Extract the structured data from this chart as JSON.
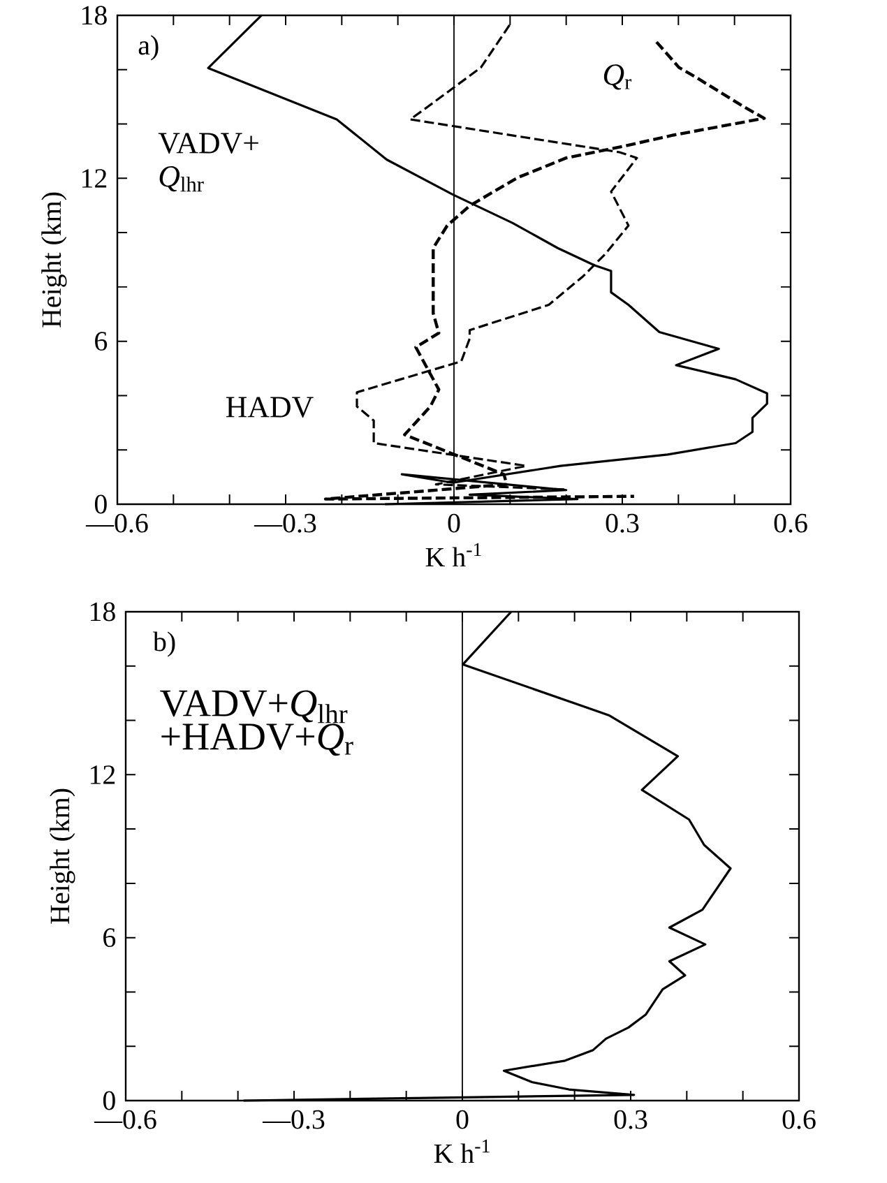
{
  "chart_data": [
    {
      "type": "line",
      "annotations": [
        "a)"
      ],
      "xlabel": "K h$^{-1}$",
      "ylabel": "Height (km)",
      "xlim": [
        -0.6,
        0.6
      ],
      "ylim": [
        0,
        18
      ],
      "xticks": [
        {
          "value": -0.6,
          "label": "—0.6"
        },
        {
          "value": -0.5,
          "label": null
        },
        {
          "value": -0.4,
          "label": null
        },
        {
          "value": -0.3,
          "label": "—0.3"
        },
        {
          "value": -0.2,
          "label": null
        },
        {
          "value": -0.1,
          "label": null
        },
        0,
        {
          "value": 0.1,
          "label": null
        },
        {
          "value": 0.2,
          "label": null
        },
        0.3,
        {
          "value": 0.4,
          "label": null
        },
        {
          "value": 0.5,
          "label": null
        },
        0.6
      ],
      "yticks": [
        0,
        {
          "value": 2,
          "label": null
        },
        {
          "value": 4,
          "label": null
        },
        6,
        {
          "value": 8,
          "label": null
        },
        {
          "value": 10,
          "label": null
        },
        12,
        {
          "value": 14,
          "label": null
        },
        {
          "value": 16,
          "label": null
        },
        18
      ],
      "ref_lines": [
        {
          "axis": "x",
          "value": 0,
          "color": "#000000"
        }
      ],
      "series": [
        {
          "name": "VADV+ *Q*$_{lhr}$",
          "color": "#000000",
          "line_style": "solid",
          "x": [
            -0.343,
            -0.438,
            -0.209,
            -0.12,
            -0.002,
            0.104,
            0.185,
            0.25,
            0.28,
            0.28,
            0.311,
            0.366,
            0.472,
            0.396,
            0.502,
            0.558,
            0.558,
            0.532,
            0.532,
            0.502,
            0.381,
            0.19,
            -0.002,
            -0.093,
            0.2,
            0.028,
            0.22,
            -0.123
          ],
          "values": [
            18,
            16.06,
            14.17,
            12.69,
            11.4,
            10.36,
            9.43,
            8.8,
            8.59,
            7.8,
            7.34,
            6.34,
            5.72,
            5.12,
            4.6,
            4.08,
            3.7,
            3.18,
            2.66,
            2.25,
            1.83,
            1.41,
            0.79,
            1.1,
            0.52,
            0.35,
            0.19,
            0
          ]
        },
        {
          "name": "HADV",
          "color": "#000000",
          "line_style": "dashed",
          "x": [
            0.099,
            0.048,
            -0.047,
            -0.078,
            0.295,
            0.326,
            0.28,
            0.311,
            0.27,
            0.23,
            0.169,
            0.028,
            0.028,
            0.013,
            -0.173,
            -0.173,
            -0.143,
            -0.143,
            0.129,
            -0.032,
            0.2
          ],
          "values": [
            17.64,
            16.08,
            14.63,
            14.17,
            12.96,
            12.75,
            11.51,
            10.26,
            9.22,
            8.39,
            7.34,
            6.41,
            6.1,
            5.26,
            4.12,
            3.6,
            3.08,
            2.25,
            1.41,
            0.73,
            0.54
          ]
        },
        {
          "name": "*Q*$_{r}$",
          "color": "#000000",
          "line_style": "dashed",
          "x": [
            0.361,
            0.401,
            0.432,
            0.517,
            0.553,
            0.391,
            0.3,
            0.2,
            0.114,
            0.028,
            -0.012,
            -0.037,
            -0.037,
            -0.027,
            -0.068,
            -0.027,
            -0.042,
            -0.088,
            0.089,
            0.094,
            -0.229,
            0.321
          ],
          "values": [
            17.02,
            16.08,
            15.71,
            14.63,
            14.21,
            13.59,
            13.17,
            12.75,
            12.03,
            10.99,
            10.26,
            9.43,
            7.03,
            6.3,
            5.78,
            4.22,
            3.6,
            2.56,
            1.1,
            0.73,
            0.19,
            0.29
          ]
        }
      ]
    },
    {
      "type": "line",
      "annotations": [
        "b)"
      ],
      "xlabel": "K h$^{-1}$",
      "ylabel": "Height (km)",
      "xlim": [
        -0.6,
        0.6
      ],
      "ylim": [
        0,
        18
      ],
      "xticks": [
        {
          "value": -0.6,
          "label": "—0.6"
        },
        {
          "value": -0.5,
          "label": null
        },
        {
          "value": -0.4,
          "label": null
        },
        {
          "value": -0.3,
          "label": "—0.3"
        },
        {
          "value": -0.2,
          "label": null
        },
        {
          "value": -0.1,
          "label": null
        },
        0,
        {
          "value": 0.1,
          "label": null
        },
        {
          "value": 0.2,
          "label": null
        },
        0.3,
        {
          "value": 0.4,
          "label": null
        },
        {
          "value": 0.5,
          "label": null
        },
        0.6
      ],
      "yticks": [
        0,
        {
          "value": 2,
          "label": null
        },
        {
          "value": 4,
          "label": null
        },
        6,
        {
          "value": 8,
          "label": null
        },
        {
          "value": 10,
          "label": null
        },
        12,
        {
          "value": 14,
          "label": null
        },
        {
          "value": 16,
          "label": null
        },
        18
      ],
      "ref_lines": [
        {
          "axis": "x",
          "value": 0,
          "color": "#000000"
        }
      ],
      "series": [
        {
          "name": "VADV+*Q*$_{lhr}$ +HADV+*Q*$_{r}$",
          "color": "#000000",
          "line_style": "solid",
          "x": [
            0.087,
            0.001,
            0.261,
            0.384,
            0.32,
            0.404,
            0.431,
            0.478,
            0.428,
            0.369,
            0.433,
            0.369,
            0.397,
            0.357,
            0.327,
            0.296,
            0.256,
            0.233,
            0.183,
            0.074,
            0.124,
            0.19,
            0.306,
            0.004,
            -0.39
          ],
          "values": [
            18,
            16.06,
            14.19,
            12.68,
            11.44,
            10.35,
            9.41,
            8.55,
            7.03,
            6.37,
            5.75,
            5.13,
            4.61,
            4.1,
            3.17,
            2.69,
            2.28,
            1.86,
            1.47,
            1.1,
            0.68,
            0.41,
            0.21,
            0.12,
            0
          ]
        }
      ]
    }
  ]
}
